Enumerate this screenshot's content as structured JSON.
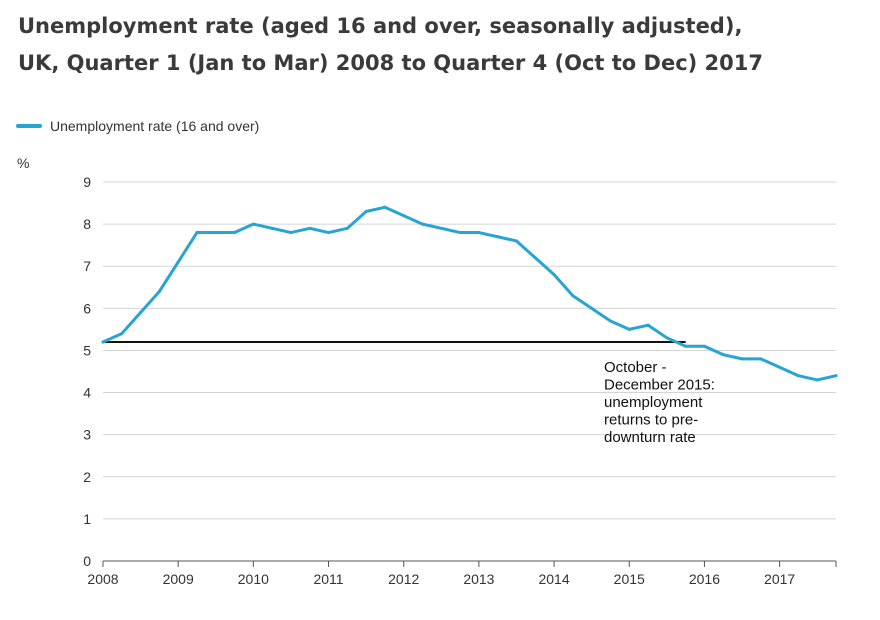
{
  "title_lines": [
    "Unemployment rate (aged 16 and over, seasonally adjusted),",
    "UK, Quarter 1 (Jan to Mar) 2008 to Quarter 4 (Oct to Dec) 2017"
  ],
  "colors": {
    "series": "#27a3d6",
    "reference_line": "#111111",
    "grid": "#d4d4d4",
    "axis": "#555555"
  },
  "chart_data": {
    "type": "line",
    "title": "Unemployment rate (aged 16 and over, seasonally adjusted), UK, Quarter 1 (Jan to Mar) 2008 to Quarter 4 (Oct to Dec) 2017",
    "ylabel": "%",
    "xlabel": "",
    "ylim": [
      0,
      9
    ],
    "yticks": [
      0,
      1,
      2,
      3,
      4,
      5,
      6,
      7,
      8,
      9
    ],
    "xlim": [
      2008.0,
      2017.75
    ],
    "xticks": [
      "2008",
      "2009",
      "2010",
      "2011",
      "2012",
      "2013",
      "2014",
      "2015",
      "2016",
      "2017"
    ],
    "grid": true,
    "legend_position": "top-left",
    "series": [
      {
        "name": "Unemployment rate (16 and over)",
        "x": [
          "2008 Q1",
          "2008 Q2",
          "2008 Q3",
          "2008 Q4",
          "2009 Q1",
          "2009 Q2",
          "2009 Q3",
          "2009 Q4",
          "2010 Q1",
          "2010 Q2",
          "2010 Q3",
          "2010 Q4",
          "2011 Q1",
          "2011 Q2",
          "2011 Q3",
          "2011 Q4",
          "2012 Q1",
          "2012 Q2",
          "2012 Q3",
          "2012 Q4",
          "2013 Q1",
          "2013 Q2",
          "2013 Q3",
          "2013 Q4",
          "2014 Q1",
          "2014 Q2",
          "2014 Q3",
          "2014 Q4",
          "2015 Q1",
          "2015 Q2",
          "2015 Q3",
          "2015 Q4",
          "2016 Q1",
          "2016 Q2",
          "2016 Q3",
          "2016 Q4",
          "2017 Q1",
          "2017 Q2",
          "2017 Q3",
          "2017 Q4"
        ],
        "values": [
          5.2,
          5.4,
          5.9,
          6.4,
          7.1,
          7.8,
          7.8,
          7.8,
          8.0,
          7.9,
          7.8,
          7.9,
          7.8,
          7.9,
          8.3,
          8.4,
          8.2,
          8.0,
          7.9,
          7.8,
          7.8,
          7.7,
          7.6,
          7.2,
          6.8,
          6.3,
          6.0,
          5.7,
          5.5,
          5.6,
          5.3,
          5.1,
          5.1,
          4.9,
          4.8,
          4.8,
          4.6,
          4.4,
          4.3,
          4.4
        ]
      }
    ],
    "reference_line": {
      "value": 5.2,
      "from": "2008 Q1",
      "to": "2015 Q4"
    },
    "annotation": {
      "lines": [
        "October -",
        "December 2015:",
        "unemployment",
        "returns to pre-",
        "downturn rate"
      ]
    }
  }
}
